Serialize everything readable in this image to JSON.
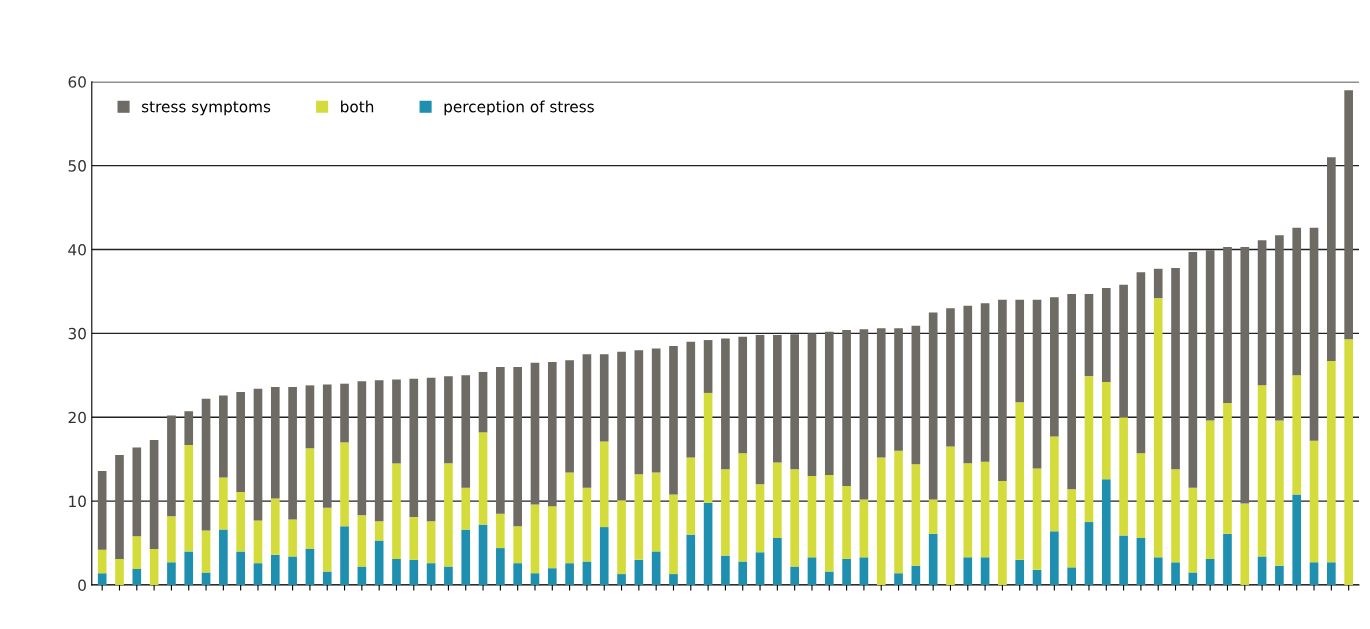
{
  "chart_data": {
    "type": "bar",
    "stacked": true,
    "categories": [
      null,
      null,
      null,
      null,
      null,
      null,
      null,
      null,
      null,
      null,
      null,
      null,
      null,
      null,
      null,
      null,
      null,
      null,
      null,
      null,
      null,
      null,
      null,
      null,
      null,
      null,
      null,
      null,
      null,
      null,
      null,
      null,
      null,
      null,
      null,
      null,
      null,
      null,
      null,
      null,
      null,
      null,
      null,
      null,
      null,
      null,
      null,
      null,
      null,
      null,
      null,
      null,
      null,
      null,
      null,
      null,
      null,
      null,
      null,
      null,
      null,
      null,
      null,
      null,
      null,
      null,
      null,
      null,
      null,
      null,
      null,
      null,
      null
    ],
    "series": [
      {
        "name": "perception of stress",
        "color": "#1e8fae",
        "values": [
          1.4,
          0,
          1.9,
          0,
          2.7,
          4.0,
          1.5,
          6.6,
          4.0,
          2.6,
          3.6,
          3.4,
          4.3,
          1.6,
          7.0,
          2.2,
          5.3,
          3.1,
          3.0,
          2.6,
          2.2,
          6.6,
          7.2,
          4.4,
          2.6,
          1.4,
          2.0,
          2.6,
          2.8,
          6.9,
          1.3,
          3.0,
          4.0,
          1.3,
          6.0,
          9.8,
          3.5,
          2.8,
          3.9,
          5.6,
          2.2,
          3.3,
          1.6,
          3.1,
          3.3,
          0,
          1.4,
          2.3,
          6.1,
          0,
          3.3,
          3.3,
          0,
          3.0,
          1.8,
          6.4,
          2.1,
          7.5,
          12.6,
          5.9,
          5.6,
          3.3,
          2.7,
          1.5,
          3.1,
          6.1,
          0,
          3.4,
          2.3,
          10.8,
          2.7,
          2.7,
          0
        ]
      },
      {
        "name": "both",
        "color": "#d4dc3c",
        "values": [
          2.8,
          3.1,
          3.9,
          4.3,
          5.5,
          12.7,
          5.0,
          6.2,
          7.1,
          5.1,
          6.7,
          4.4,
          12.0,
          7.6,
          10.0,
          6.1,
          2.3,
          11.4,
          5.1,
          5.0,
          12.3,
          5.0,
          11.0,
          4.1,
          4.4,
          8.2,
          7.4,
          10.8,
          8.8,
          10.2,
          8.8,
          10.2,
          9.4,
          9.5,
          9.2,
          13.1,
          10.3,
          12.9,
          8.1,
          9.0,
          11.6,
          9.7,
          11.5,
          8.7,
          6.9,
          15.2,
          14.6,
          12.1,
          4.1,
          16.5,
          11.2,
          11.4,
          12.4,
          18.8,
          12.1,
          11.3,
          9.3,
          17.4,
          11.6,
          14.1,
          10.1,
          30.9,
          11.1,
          10.1,
          16.5,
          15.6,
          9.7,
          20.4,
          17.3,
          14.2,
          14.5,
          24.0,
          29.3
        ]
      },
      {
        "name": "stress symptoms",
        "color": "#6e6a64",
        "values": [
          9.4,
          12.4,
          10.6,
          13.0,
          12.0,
          4.0,
          15.7,
          9.8,
          11.9,
          15.7,
          13.3,
          15.8,
          7.5,
          14.7,
          7.0,
          16.0,
          16.8,
          10.0,
          16.5,
          17.1,
          10.4,
          13.4,
          7.2,
          17.5,
          19.0,
          16.9,
          17.2,
          13.4,
          15.9,
          10.4,
          17.7,
          14.8,
          14.8,
          17.7,
          13.8,
          6.3,
          15.6,
          13.9,
          17.8,
          15.2,
          16.1,
          17.0,
          17.1,
          18.6,
          20.3,
          15.4,
          14.6,
          16.5,
          22.3,
          16.5,
          18.8,
          18.9,
          21.6,
          12.2,
          20.1,
          16.6,
          23.3,
          9.8,
          11.2,
          15.8,
          21.6,
          3.5,
          24.0,
          28.1,
          20.3,
          18.6,
          30.6,
          17.3,
          22.1,
          17.6,
          25.4,
          24.3,
          29.7
        ]
      }
    ],
    "ylim": [
      0,
      60
    ],
    "yticks": [
      0,
      10,
      20,
      30,
      40,
      50,
      60
    ],
    "grid": "y",
    "legend": "top left"
  }
}
